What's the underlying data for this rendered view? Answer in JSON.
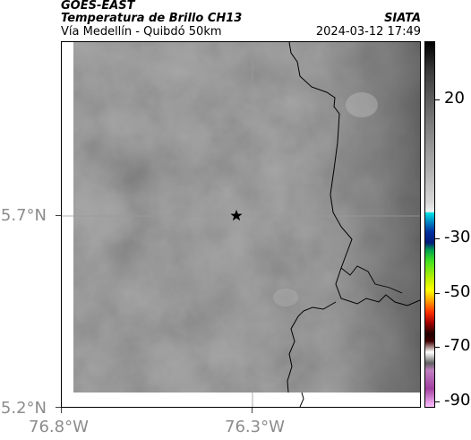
{
  "header": {
    "source": "GOES-EAST",
    "product": "Temperatura de Brillo CH13",
    "region": "Vía Medellín - Quibdó 50km",
    "organization": "SIATA",
    "datetime": "2024-03-12 17:49"
  },
  "map": {
    "latitude_labels": [
      "5.7°N",
      "5.2°N"
    ],
    "longitude_labels": [
      "76.8°W",
      "76.3°W"
    ],
    "marker": {
      "icon": "star-icon",
      "lat": 5.7,
      "lon": -76.33
    },
    "background_color": "#6b6b6b",
    "border_color": "#000000"
  },
  "colorbar": {
    "tick_labels": [
      "20",
      "-30",
      "-50",
      "-70",
      "-90"
    ],
    "tick_values": [
      20,
      -30,
      -50,
      -70,
      -90
    ]
  }
}
